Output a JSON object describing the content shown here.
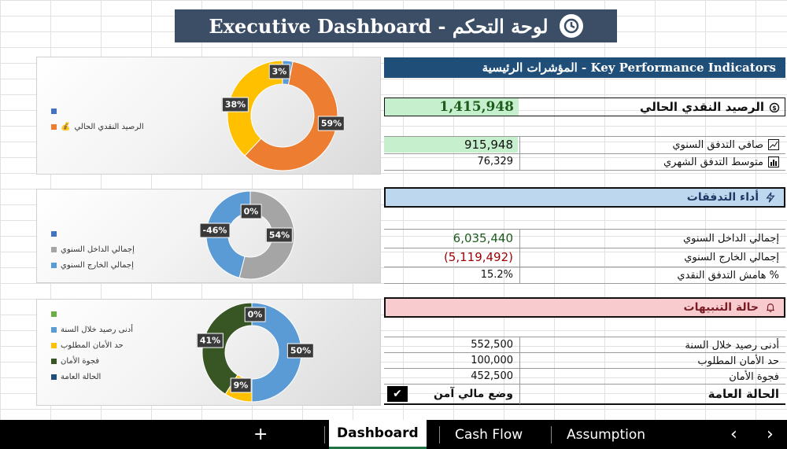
{
  "banner": {
    "title": "Executive Dashboard - لوحة التحكم"
  },
  "kpi": {
    "header": "المؤشرات الرئيسية - Key Performance Indicators",
    "cash_balance": {
      "label": "الرصيد النقدي الحالي",
      "value": "1,415,948"
    },
    "annual_net": {
      "label": "صافي التدفق السنوي",
      "value": "915,948"
    },
    "monthly_avg": {
      "label": "متوسط التدفق الشهري",
      "value": "76,329"
    }
  },
  "flows": {
    "header": "أداء التدفقات",
    "inflow": {
      "label": "إجمالي الداخل السنوي",
      "value": "6,035,440"
    },
    "outflow": {
      "label": "إجمالي الخارج السنوي",
      "value": "(5,119,492)"
    },
    "margin": {
      "label": "هامش التدفق النقدي %",
      "value": "15.2%"
    }
  },
  "alerts": {
    "header": "حالة التنبيهات",
    "min_balance": {
      "label": "أدنى رصيد خلال السنة",
      "value": "552,500"
    },
    "safety_limit": {
      "label": "حد الأمان المطلوب",
      "value": "100,000"
    },
    "safety_gap": {
      "label": "فجوة الأمان",
      "value": "452,500"
    },
    "status": {
      "label": "الحالة العامة",
      "value": "وضع مالي آمن",
      "check": "✔"
    }
  },
  "charts": {
    "chart1": {
      "legend": [
        "",
        "الرصيد النقدي الحالي"
      ],
      "labels": [
        "3%",
        "59%",
        "38%"
      ],
      "values": [
        3,
        59,
        38
      ],
      "colors": [
        "#5b9bd5",
        "#ed7d31",
        "#ffc000"
      ]
    },
    "chart2": {
      "legend": [
        "",
        "إجمالي الداخل السنوي",
        "إجمالي الخارج السنوي"
      ],
      "labels": [
        "0%",
        "54%",
        "-46%"
      ],
      "values": [
        0,
        54,
        46
      ],
      "colors": [
        "#4472c4",
        "#a5a5a5",
        "#5b9bd5"
      ]
    },
    "chart3": {
      "legend": [
        "",
        "أدنى رصيد خلال السنة",
        "حد الأمان المطلوب",
        "فجوة الأمان",
        "الحالة العامة"
      ],
      "labels": [
        "0%",
        "50%",
        "9%",
        "41%"
      ],
      "values": [
        0,
        50,
        9,
        41
      ],
      "colors": [
        "#70ad47",
        "#5b9bd5",
        "#ffc000",
        "#375623"
      ]
    }
  },
  "tabs": {
    "add": "+",
    "dashboard": "Dashboard",
    "cashflow": "Cash Flow",
    "assumption": "Assumption",
    "prev": "‹",
    "next": "›"
  }
}
